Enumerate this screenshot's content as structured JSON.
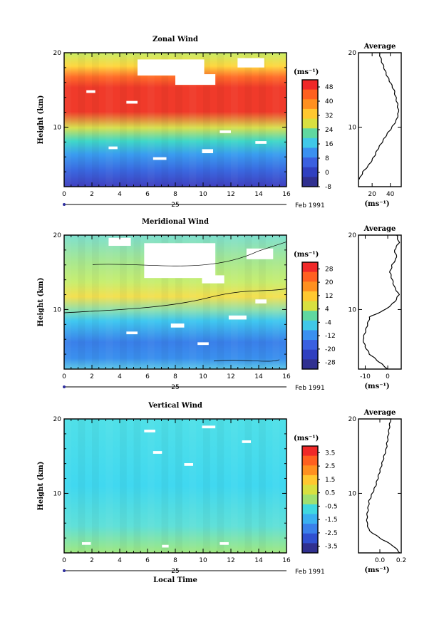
{
  "chart_data": [
    {
      "type": "heatmap",
      "title": "Zonal Wind",
      "ylabel": "Height (km)",
      "x_ticks": [
        "0",
        "2",
        "4",
        "6",
        "8",
        "10",
        "12",
        "14",
        "16"
      ],
      "y_ticks": [
        "10",
        "20"
      ],
      "date_day": "25",
      "date_label": "Feb 1991",
      "xlim": [
        0,
        16
      ],
      "ylim": [
        2,
        20
      ],
      "colorbar": {
        "unit": "(ms⁻¹)",
        "ticks": [
          "48",
          "40",
          "32",
          "24",
          "16",
          "8",
          "0",
          "-8"
        ],
        "range": [
          -8,
          52
        ]
      },
      "profile": {
        "title": "Average",
        "x_ticks": [
          "20",
          "40"
        ],
        "x_unit": "(ms⁻¹)",
        "y_ticks": [
          "10",
          "20"
        ],
        "xlim": [
          5,
          52
        ],
        "heights": [
          3,
          4,
          5,
          6,
          7,
          8,
          9,
          10,
          11,
          12,
          13,
          14,
          15,
          16,
          17,
          18,
          19,
          20
        ],
        "values": [
          6,
          10,
          17,
          22,
          26,
          31,
          36,
          42,
          47,
          49,
          48,
          46,
          44,
          40,
          36,
          33,
          30,
          28
        ]
      }
    },
    {
      "type": "heatmap",
      "title": "Meridional Wind",
      "ylabel": "Height (km)",
      "x_ticks": [
        "0",
        "2",
        "4",
        "6",
        "8",
        "10",
        "12",
        "14",
        "16"
      ],
      "y_ticks": [
        "10",
        "20"
      ],
      "date_day": "25",
      "date_label": "Feb 1991",
      "xlim": [
        0,
        16
      ],
      "ylim": [
        2,
        20
      ],
      "colorbar": {
        "unit": "(ms⁻¹)",
        "ticks": [
          "28",
          "20",
          "12",
          "4",
          "-4",
          "-12",
          "-20",
          "-28"
        ],
        "range": [
          -32,
          32
        ]
      },
      "profile": {
        "title": "Average",
        "x_ticks": [
          "-10",
          "0"
        ],
        "x_unit": "(ms⁻¹)",
        "y_ticks": [
          "10",
          "20"
        ],
        "xlim": [
          -13,
          6
        ],
        "heights": [
          2,
          3,
          4,
          5,
          6,
          7,
          8,
          9,
          10,
          11,
          12,
          13,
          14,
          15,
          16,
          17,
          18,
          19,
          20
        ],
        "values": [
          0,
          -4,
          -8,
          -10,
          -11,
          -10,
          -9,
          -8,
          -1,
          3,
          5,
          3,
          2,
          1,
          2,
          4,
          3,
          5,
          4
        ]
      }
    },
    {
      "type": "heatmap",
      "title": "Vertical Wind",
      "ylabel": "Height (km)",
      "xlabel": "Local Time",
      "x_ticks": [
        "0",
        "2",
        "4",
        "6",
        "8",
        "10",
        "12",
        "14",
        "16"
      ],
      "y_ticks": [
        "10",
        "20"
      ],
      "date_day": "25",
      "date_label": "Feb 1991",
      "xlim": [
        0,
        16
      ],
      "ylim": [
        2,
        20
      ],
      "colorbar": {
        "unit": "(ms⁻¹)",
        "ticks": [
          "3.5",
          "2.5",
          "1.5",
          "0.5",
          "-0.5",
          "-1.5",
          "-2.5",
          "-3.5"
        ],
        "range": [
          -4,
          4
        ]
      },
      "profile": {
        "title": "Average",
        "x_ticks": [
          "0.0",
          "0.2"
        ],
        "x_unit": "(ms⁻¹)",
        "y_ticks": [
          "10",
          "20"
        ],
        "xlim": [
          -0.2,
          0.2
        ],
        "heights": [
          2,
          3,
          4,
          5,
          6,
          7,
          8,
          9,
          10,
          11,
          12,
          13,
          14,
          15,
          16,
          17,
          18,
          19,
          20
        ],
        "values": [
          0.19,
          0.12,
          0.0,
          -0.1,
          -0.12,
          -0.12,
          -0.11,
          -0.1,
          -0.07,
          -0.04,
          -0.02,
          0.0,
          0.02,
          0.04,
          0.06,
          0.07,
          0.08,
          0.09,
          0.1
        ]
      }
    }
  ]
}
